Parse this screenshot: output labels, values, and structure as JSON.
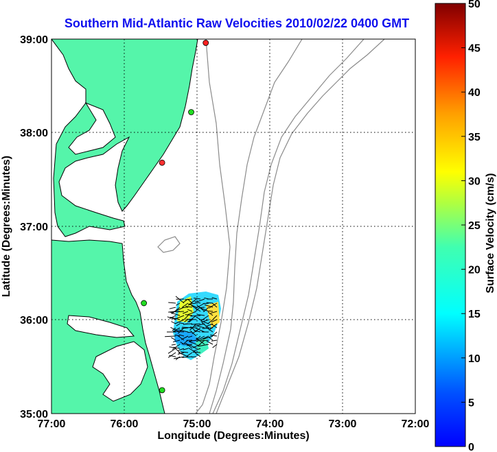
{
  "title": "Southern Mid-Atlantic Raw Velocities 2010/02/22 0400 GMT",
  "x_axis": {
    "label": "Longitude (Degrees:Minutes)",
    "ticks": [
      "77:00",
      "76:00",
      "75:00",
      "74:00",
      "73:00",
      "72:00"
    ]
  },
  "y_axis": {
    "label": "Latitude (Degrees:Minutes)",
    "ticks": [
      "39:00",
      "38:00",
      "37:00",
      "36:00",
      "35:00"
    ]
  },
  "colorbar": {
    "label": "Surface Velocity (cm/s)",
    "ticks": [
      "50",
      "45",
      "40",
      "35",
      "30",
      "25",
      "20",
      "15",
      "10",
      "5",
      "0"
    ],
    "range": [
      0,
      50
    ],
    "colormap": "jet"
  },
  "map": {
    "extent": {
      "lon": [
        -77,
        -72
      ],
      "lat": [
        35,
        39
      ]
    },
    "land_color": "#55f5aa",
    "water_color": "#ffffff",
    "bathymetry_color": "#8a8a8a",
    "grid": true,
    "stations": [
      {
        "color": "#ff2020",
        "lon": -74.88,
        "lat": 38.96
      },
      {
        "color": "#22dd22",
        "lon": -75.08,
        "lat": 38.22
      },
      {
        "color": "#ff3030",
        "lon": -75.48,
        "lat": 37.68
      },
      {
        "color": "#22dd22",
        "lon": -75.73,
        "lat": 36.18
      },
      {
        "color": "#22dd22",
        "lon": -75.48,
        "lat": 35.25
      }
    ]
  }
}
